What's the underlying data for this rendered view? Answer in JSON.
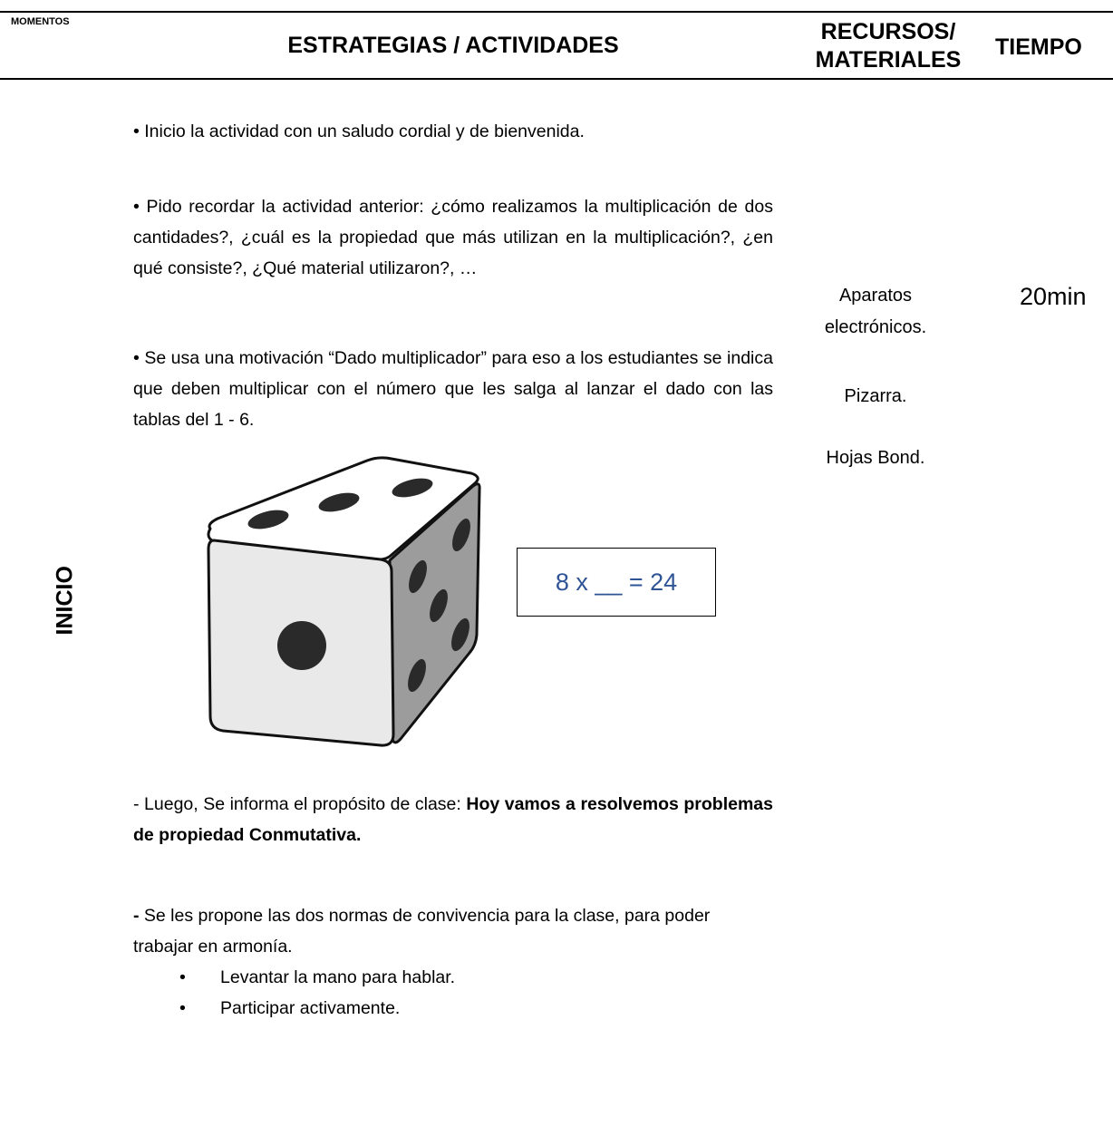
{
  "header": {
    "momentos": "MOMENTOS",
    "estrategias": "ESTRATEGIAS / ACTIVIDADES",
    "recursos": [
      "RECURSOS/",
      "MATERIALES"
    ],
    "tiempo": "TIEMPO"
  },
  "moment": "INICIO",
  "activities": {
    "p1": "• Inicio la actividad con un saludo cordial y de bienvenida.",
    "p2": "• Pido recordar la actividad anterior: ¿cómo realizamos la multiplicación de dos cantidades?, ¿cuál es la propiedad que más utilizan en la multiplicación?, ¿en qué consiste?, ¿Qué material utilizaron?, …",
    "p3": "• Se usa una motivación “Dado multiplicador” para eso a los estudiantes se indica que deben multiplicar con el número que les salga al lanzar el dado con las tablas del 1 - 6.",
    "equation": "8 x __ = 24",
    "p4_intro": "- Luego, Se informa el propósito de clase: ",
    "p4_bold": "Hoy vamos a resolvemos problemas de propiedad Conmutativa.",
    "p5_dash": "-",
    "p5": " Se les propone las dos normas de convivencia para la clase, para poder trabajar en armonía.",
    "norms": [
      "Levantar la mano para hablar.",
      "Participar activamente."
    ]
  },
  "resources": [
    "Aparatos electrónicos.",
    "Pizarra.",
    "Hojas Bond."
  ],
  "time": "20min"
}
